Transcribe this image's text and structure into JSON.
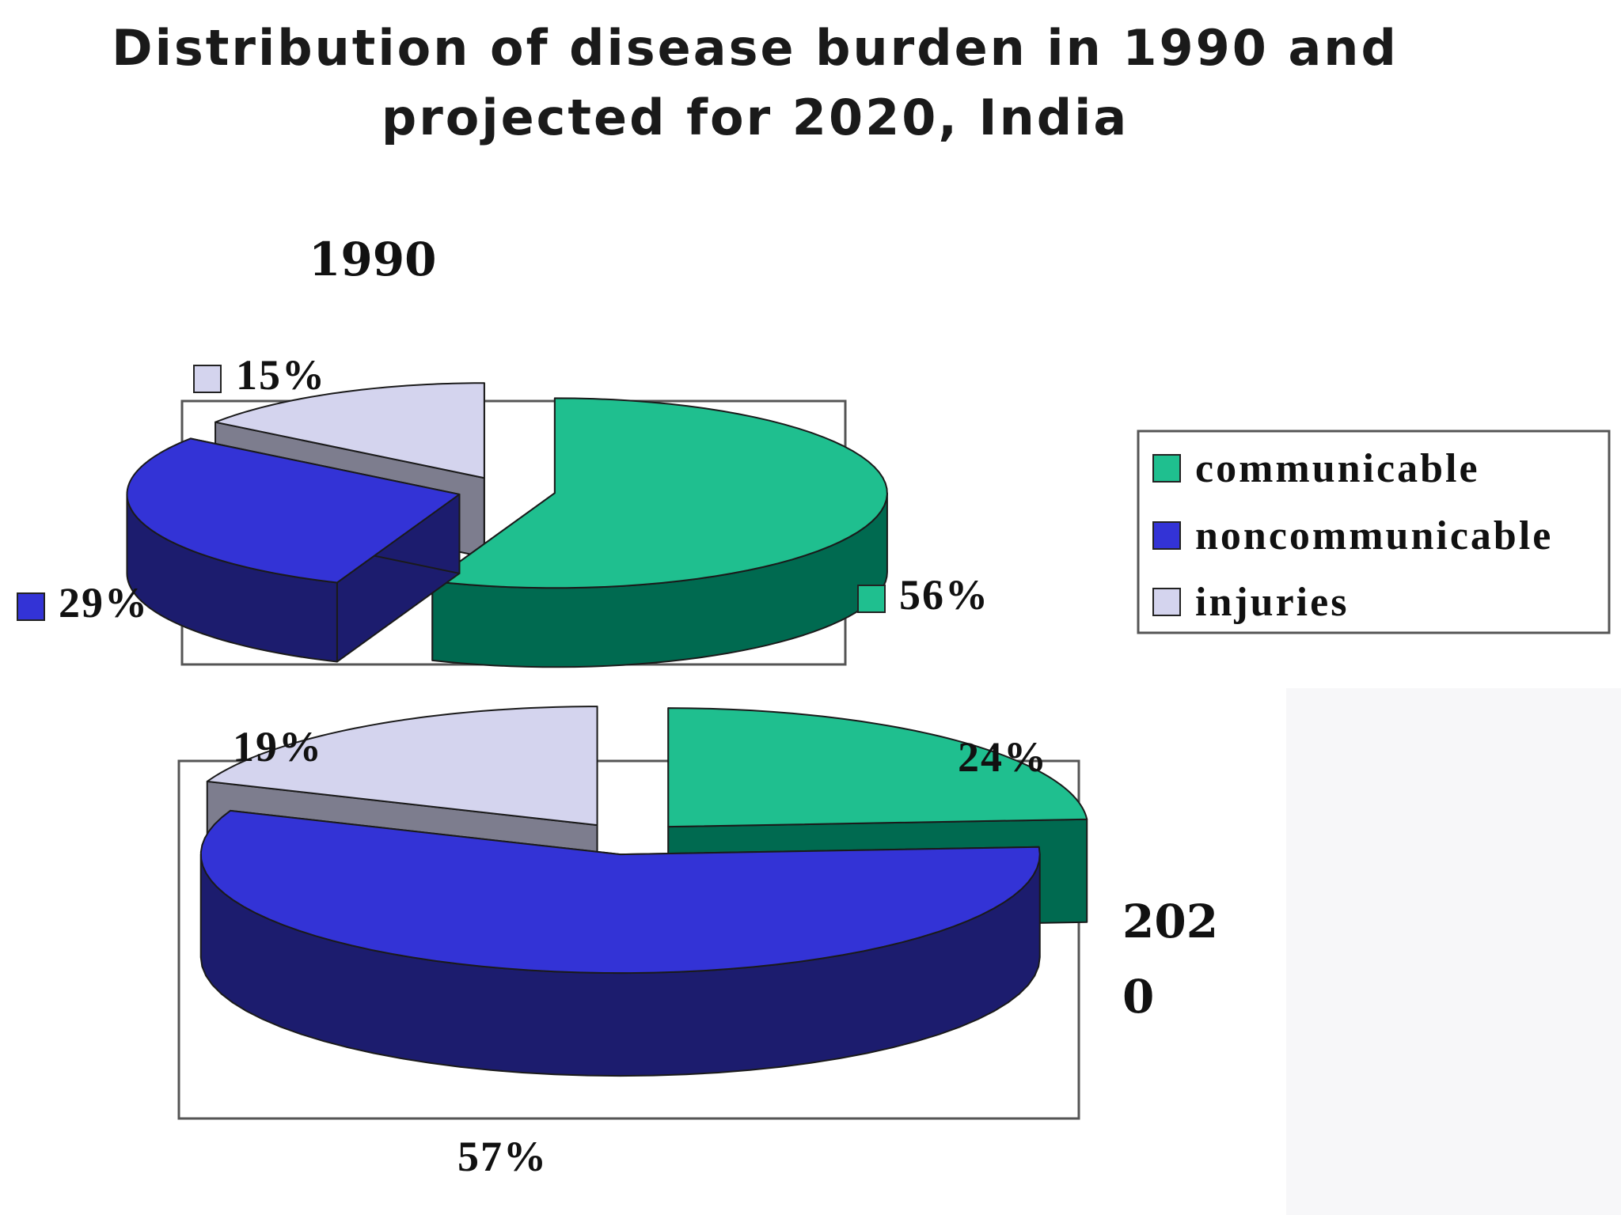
{
  "title": {
    "line1": "Distribution of disease burden in 1990 and",
    "line2": "projected for 2020, India"
  },
  "colors": {
    "communicable_top": "#1fbf8f",
    "communicable_side": "#006a50",
    "noncommunicable_top": "#3333d6",
    "noncommunicable_side": "#1c1c6e",
    "injuries_top": "#d4d4ee",
    "injuries_side": "#7d7d8e"
  },
  "legend": {
    "items": [
      {
        "label": "communicable",
        "key": "communicable"
      },
      {
        "label": "noncommunicable",
        "key": "noncommunicable"
      },
      {
        "label": "injuries",
        "key": "injuries"
      }
    ]
  },
  "charts": {
    "c1990": {
      "year_label": "1990",
      "labels": {
        "communicable": "56%",
        "noncommunicable": "29%",
        "injuries": "15%"
      }
    },
    "c2020": {
      "year_label_line1": "202",
      "year_label_line2": "0",
      "labels": {
        "communicable": "24%",
        "noncommunicable": "57%",
        "injuries": "19%"
      }
    }
  },
  "chart_data": [
    {
      "type": "pie",
      "title": "Distribution of disease burden in 1990 and projected for 2020, India",
      "subtitle": "1990",
      "categories": [
        "communicable",
        "noncommunicable",
        "injuries"
      ],
      "values": [
        56,
        29,
        15
      ],
      "unit": "%",
      "legend": "right",
      "grid": false
    },
    {
      "type": "pie",
      "title": "Distribution of disease burden in 1990 and projected for 2020, India",
      "subtitle": "2020",
      "categories": [
        "communicable",
        "noncommunicable",
        "injuries"
      ],
      "values": [
        24,
        57,
        19
      ],
      "unit": "%",
      "legend": "right",
      "grid": false
    }
  ]
}
